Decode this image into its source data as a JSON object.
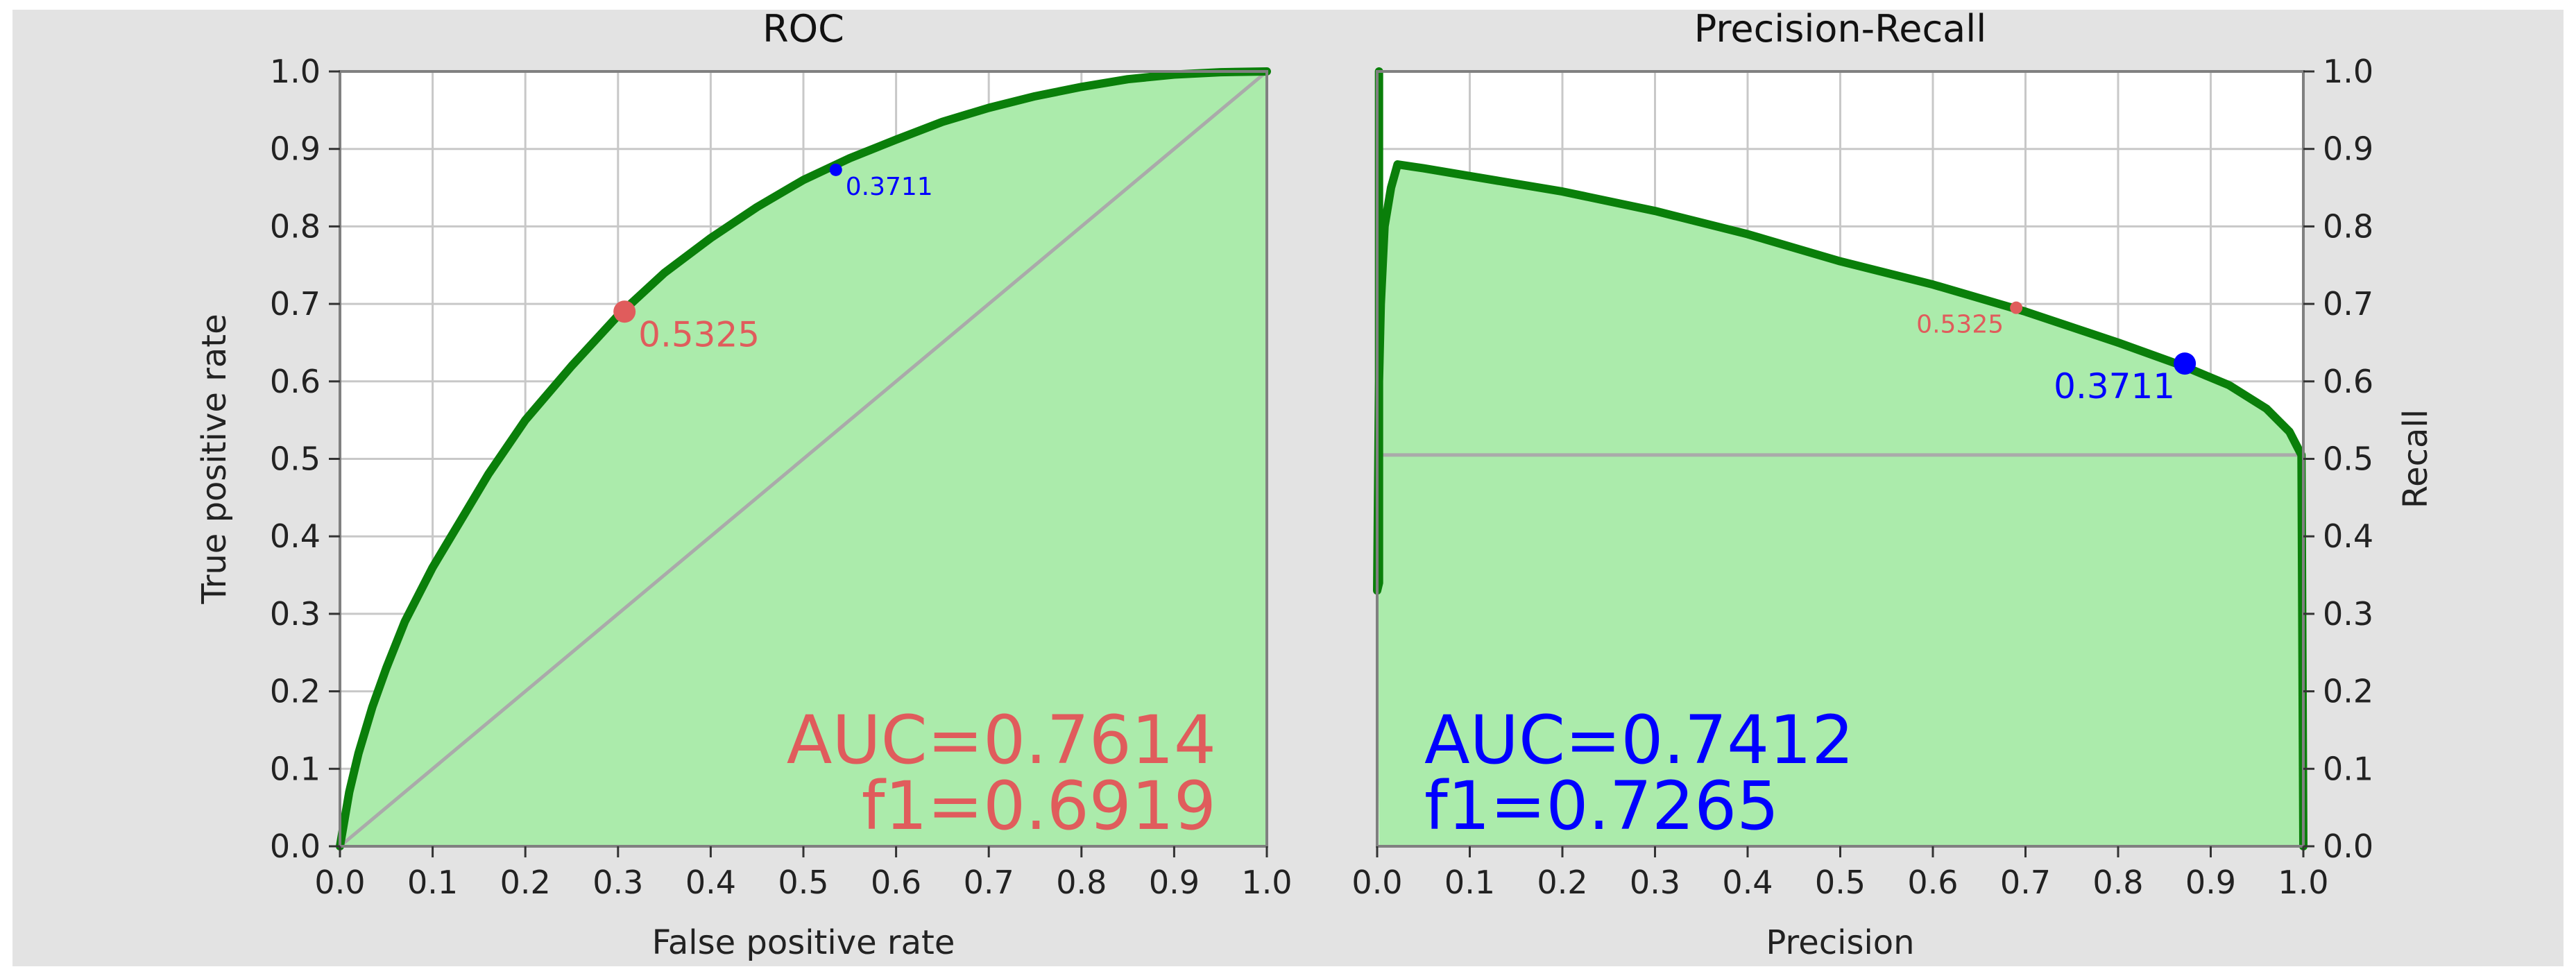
{
  "chart_data": [
    {
      "type": "line",
      "title": "ROC",
      "xlabel": "False positive rate",
      "ylabel": "True positive rate",
      "xlim": [
        0,
        1
      ],
      "ylim": [
        0,
        1
      ],
      "grid": true,
      "xticks": [
        "0.0",
        "0.1",
        "0.2",
        "0.3",
        "0.4",
        "0.5",
        "0.6",
        "0.7",
        "0.8",
        "0.9",
        "1.0"
      ],
      "yticks": [
        "0.0",
        "0.1",
        "0.2",
        "0.3",
        "0.4",
        "0.5",
        "0.6",
        "0.7",
        "0.8",
        "0.9",
        "1.0"
      ],
      "series": [
        {
          "x": [
            0.0,
            0.01,
            0.02,
            0.035,
            0.05,
            0.07,
            0.1,
            0.13,
            0.16,
            0.2,
            0.25,
            0.3,
            0.35,
            0.4,
            0.45,
            0.5,
            0.55,
            0.6,
            0.65,
            0.7,
            0.75,
            0.8,
            0.85,
            0.9,
            0.95,
            1.0
          ],
          "y": [
            0.0,
            0.07,
            0.12,
            0.18,
            0.23,
            0.29,
            0.36,
            0.42,
            0.48,
            0.55,
            0.62,
            0.685,
            0.74,
            0.785,
            0.825,
            0.86,
            0.888,
            0.912,
            0.935,
            0.953,
            0.968,
            0.98,
            0.99,
            0.996,
            0.999,
            1.0
          ]
        }
      ],
      "diagonal": {
        "x": [
          0,
          1
        ],
        "y": [
          0,
          1
        ]
      },
      "markers": [
        {
          "x": 0.307,
          "y": 0.69,
          "label": "0.5325",
          "color": "#e05c5c"
        },
        {
          "x": 0.535,
          "y": 0.873,
          "label": "0.3711",
          "color": "#0000ff"
        }
      ],
      "annotation": {
        "lines": [
          "AUC=0.7614",
          "f1=0.6919"
        ],
        "color": "#e05c5c"
      }
    },
    {
      "type": "line",
      "title": "Precision-Recall",
      "xlabel": "Precision",
      "ylabel": "Recall",
      "xlim": [
        0,
        1
      ],
      "ylim": [
        0,
        1
      ],
      "grid": true,
      "xticks": [
        "0.0",
        "0.1",
        "0.2",
        "0.3",
        "0.4",
        "0.5",
        "0.6",
        "0.7",
        "0.8",
        "0.9",
        "1.0"
      ],
      "yticks": [
        "0.0",
        "0.1",
        "0.2",
        "0.3",
        "0.4",
        "0.5",
        "0.6",
        "0.7",
        "0.8",
        "0.9",
        "1.0"
      ],
      "series": [
        {
          "x": [
            0.002,
            0.002,
            0.0,
            0.002,
            0.004,
            0.008,
            0.015,
            0.022,
            0.05,
            0.1,
            0.2,
            0.3,
            0.4,
            0.5,
            0.6,
            0.7,
            0.8,
            0.87,
            0.92,
            0.96,
            0.985,
            0.998,
            1.0
          ],
          "y": [
            1.0,
            0.34,
            0.33,
            0.6,
            0.7,
            0.8,
            0.85,
            0.88,
            0.875,
            0.865,
            0.845,
            0.82,
            0.79,
            0.755,
            0.725,
            0.69,
            0.65,
            0.62,
            0.595,
            0.565,
            0.535,
            0.505,
            0.0
          ]
        }
      ],
      "baseline": {
        "x": [
          0,
          1
        ],
        "y": [
          0.505,
          0.505
        ]
      },
      "markers": [
        {
          "x": 0.69,
          "y": 0.695,
          "label": "0.5325",
          "color": "#e05c5c"
        },
        {
          "x": 0.872,
          "y": 0.623,
          "label": "0.3711",
          "color": "#0000ff"
        }
      ],
      "annotation": {
        "lines": [
          "AUC=0.7412",
          "f1=0.7265"
        ],
        "color": "#0000ff"
      }
    }
  ],
  "colors": {
    "curve": "#0a7f0a",
    "fill": "#abebab",
    "grid": "#c8c8c8",
    "reference": "#aaaaaa",
    "figure_bg": "#e3e3e3",
    "frame": "#808080"
  }
}
